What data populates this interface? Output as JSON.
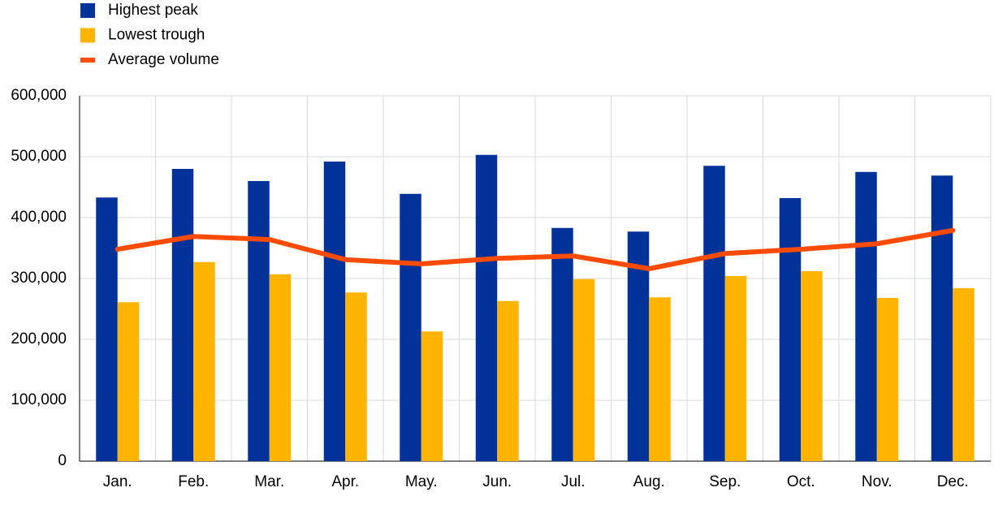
{
  "chart_data": {
    "type": "bar",
    "categories": [
      "Jan.",
      "Feb.",
      "Mar.",
      "Apr.",
      "May.",
      "Jun.",
      "Jul.",
      "Aug.",
      "Sep.",
      "Oct.",
      "Nov.",
      "Dec."
    ],
    "series": [
      {
        "name": "Highest peak",
        "type": "bar",
        "color": "#003299",
        "values": [
          433000,
          480000,
          460000,
          492000,
          439000,
          503000,
          383000,
          377000,
          485000,
          432000,
          475000,
          469000
        ]
      },
      {
        "name": "Lowest trough",
        "type": "bar",
        "color": "#ffb400",
        "values": [
          261000,
          327000,
          307000,
          277000,
          213000,
          263000,
          299000,
          269000,
          304000,
          312000,
          268000,
          284000
        ]
      },
      {
        "name": "Average volume",
        "type": "line",
        "color": "#ff4b00",
        "values": [
          348000,
          369000,
          364000,
          331000,
          324000,
          333000,
          337000,
          316000,
          341000,
          348000,
          357000,
          379000
        ]
      }
    ],
    "ylim": [
      0,
      600000
    ],
    "yticks": [
      0,
      {
        "value": 100000,
        "label": "100,000"
      },
      {
        "value": 200000,
        "label": "200,000"
      },
      {
        "value": 300000,
        "label": "300,000"
      },
      {
        "value": 400000,
        "label": "400,000"
      },
      {
        "value": 500000,
        "label": "500,000"
      },
      {
        "value": 600000,
        "label": "600,000"
      }
    ],
    "grid": true,
    "legend": "top-left"
  }
}
